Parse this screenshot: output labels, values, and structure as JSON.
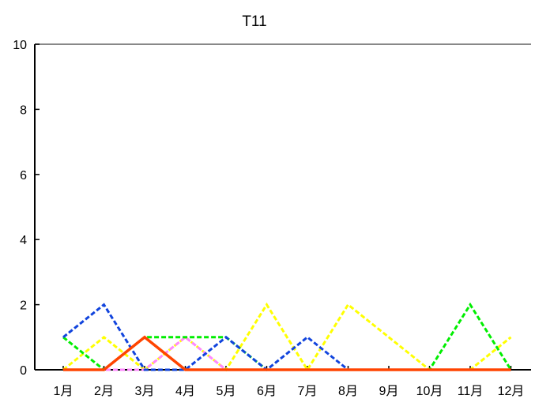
{
  "chart_data": {
    "type": "line",
    "title": "T11",
    "xlabel": "",
    "ylabel": "",
    "categories": [
      "1月",
      "2月",
      "3月",
      "4月",
      "5月",
      "6月",
      "7月",
      "8月",
      "9月",
      "10月",
      "11月",
      "12月"
    ],
    "ylim": [
      0,
      10
    ],
    "yticks": [
      0,
      2,
      4,
      6,
      8,
      10
    ],
    "grid": false,
    "legend": "none",
    "series": [
      {
        "color": "#ffff00",
        "style": "dashed",
        "values": [
          0,
          1,
          0,
          1,
          0,
          2,
          0,
          2,
          1,
          0,
          0,
          1
        ]
      },
      {
        "color": "#ff88ff",
        "style": "dashed",
        "values": [
          0,
          0,
          0,
          1,
          0,
          0,
          0,
          0,
          0,
          0,
          0,
          0
        ]
      },
      {
        "color": "#00ee00",
        "style": "dashed",
        "values": [
          1,
          0,
          1,
          1,
          1,
          0,
          0,
          0,
          0,
          0,
          2,
          0
        ]
      },
      {
        "color": "#1144dd",
        "style": "dashed",
        "values": [
          1,
          2,
          0,
          0,
          1,
          0,
          1,
          0,
          0,
          0,
          0,
          0
        ]
      },
      {
        "color": "#ff4400",
        "style": "solid",
        "values": [
          0,
          0,
          1,
          0,
          0,
          0,
          0,
          0,
          0,
          0,
          0,
          0
        ]
      }
    ]
  }
}
